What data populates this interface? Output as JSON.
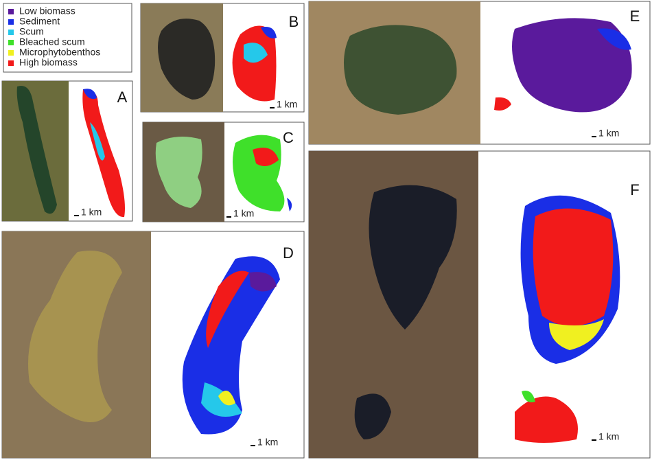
{
  "legend": {
    "items": [
      {
        "label": "Low biomass",
        "color": "#5a1a9c"
      },
      {
        "label": "Sediment",
        "color": "#1a2ee6"
      },
      {
        "label": "Scum",
        "color": "#25c8ea"
      },
      {
        "label": "Bleached scum",
        "color": "#3fe02a"
      },
      {
        "label": "Microphytobenthos",
        "color": "#f0f020"
      },
      {
        "label": "High biomass",
        "color": "#f21a1a"
      }
    ]
  },
  "panels": [
    {
      "letter": "A",
      "scale": "1 km"
    },
    {
      "letter": "B",
      "scale": "1 km"
    },
    {
      "letter": "C",
      "scale": "1 km"
    },
    {
      "letter": "D",
      "scale": "1 km"
    },
    {
      "letter": "E",
      "scale": "1 km"
    },
    {
      "letter": "F",
      "scale": "1 km"
    }
  ]
}
